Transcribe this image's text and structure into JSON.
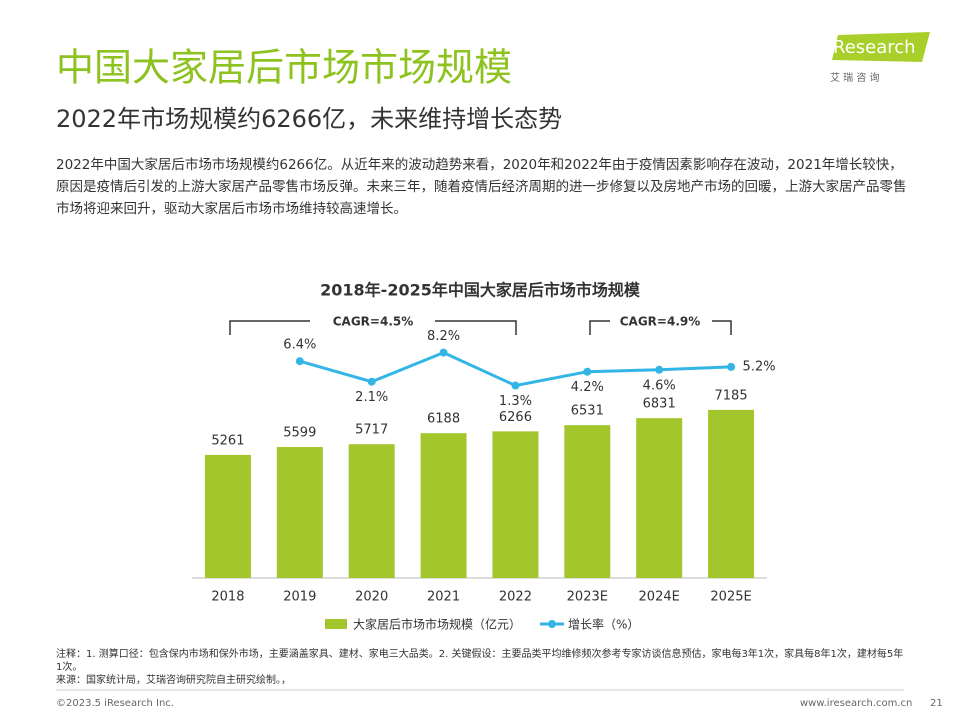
{
  "header": {
    "title": "中国大家居后市场市场规模",
    "subtitle": "2022年市场规模约6266亿，未来维持增长态势",
    "logo": "iResearch",
    "logo_sub": "艾 瑞 咨 询"
  },
  "paragraph": "2022年中国大家居后市场市场规模约6266亿。从近年来的波动趋势来看，2020年和2022年由于疫情因素影响存在波动，2021年增长较快，原因是疫情后引发的上游大家居产品零售市场反弹。未来三年，随着疫情后经济周期的进一步修复以及房地产市场的回暖，上游大家居产品零售市场将迎来回升，驱动大家居后市场市场维持较高速增长。",
  "chart_data": {
    "type": "bar-line",
    "title": "2018年-2025年中国大家居后市场市场规模",
    "categories": [
      "2018",
      "2019",
      "2020",
      "2021",
      "2022",
      "2023E",
      "2024E",
      "2025E"
    ],
    "series": [
      {
        "name": "大家居后市场市场规模（亿元）",
        "type": "bar",
        "color": "#a2c62c",
        "values": [
          5261,
          5599,
          5717,
          6188,
          6266,
          6531,
          6831,
          7185
        ]
      },
      {
        "name": "增长率（%）",
        "type": "line",
        "axis": "y2",
        "color": "#33b6e6",
        "values": [
          null,
          6.4,
          2.1,
          8.2,
          1.3,
          4.2,
          4.6,
          5.2
        ],
        "value_labels": [
          null,
          "6.4%",
          "2.1%",
          "8.2%",
          "1.3%",
          "4.2%",
          "4.6%",
          "5.2%"
        ]
      }
    ],
    "ylim": [
      0,
      10000
    ],
    "y2lim": [
      -39,
      10
    ],
    "annotations": [
      "CAGR=4.5%",
      "CAGR=4.9%"
    ],
    "legend": "bottom"
  },
  "notes": [
    "注释：1. 测算口径：包含保内市场和保外市场，主要涵盖家具、建材、家电三大品类。2. 关键假设：主要品类平均维修频次参考专家访谈信息预估，家电每3年1次，家具每8年1次，建材每5年1次。",
    "来源：国家统计局，艾瑞咨询研究院自主研究绘制。，"
  ],
  "footer": {
    "copyright": "©2023.5 iResearch Inc.",
    "url": "www.iresearch.com.cn",
    "page": "21"
  }
}
